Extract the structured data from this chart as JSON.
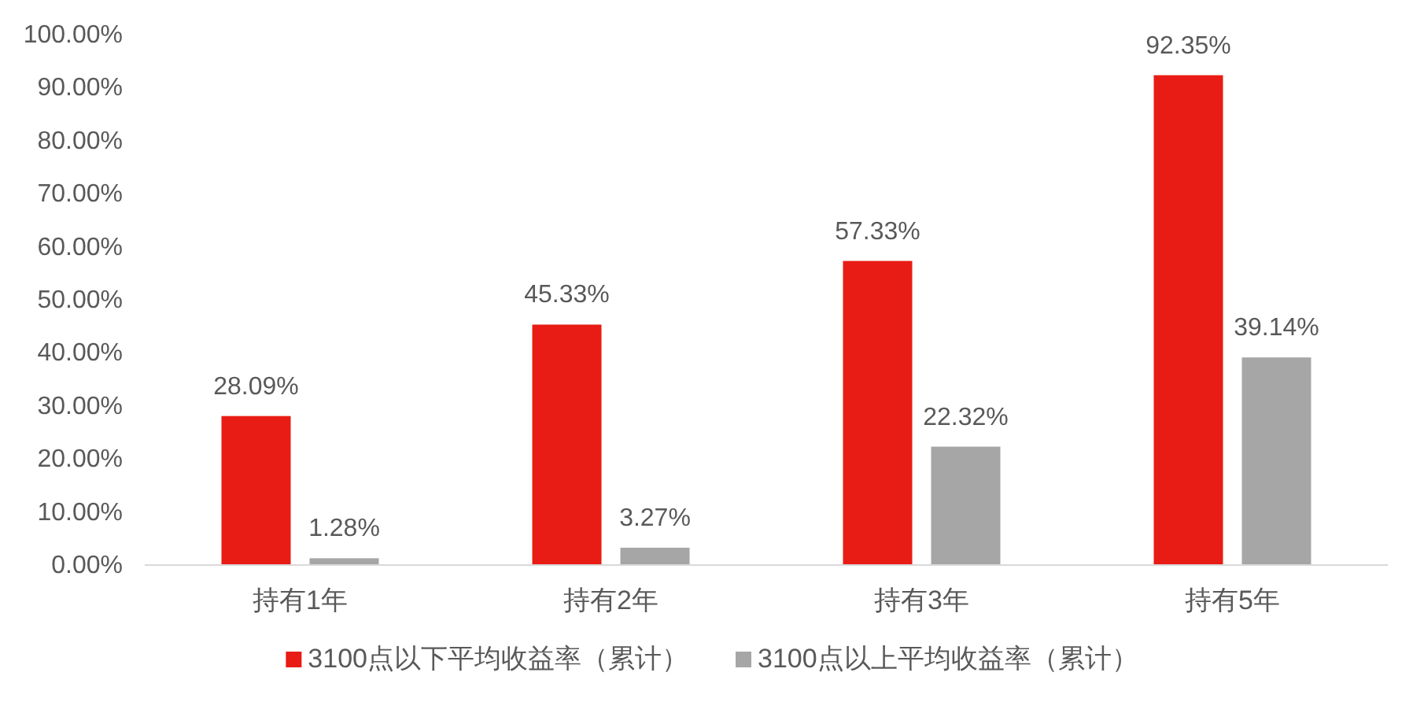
{
  "chart_data": {
    "type": "bar",
    "categories": [
      "持有1年",
      "持有2年",
      "持有3年",
      "持有5年"
    ],
    "series": [
      {
        "name": "3100点以下平均收益率（累计）",
        "color": "#e81c14",
        "values": [
          28.09,
          45.33,
          57.33,
          92.35
        ],
        "value_labels": [
          "28.09%",
          "45.33%",
          "57.33%",
          "92.35%"
        ]
      },
      {
        "name": "3100点以上平均收益率（累计）",
        "color": "#a6a6a6",
        "values": [
          1.28,
          3.27,
          22.32,
          39.14
        ],
        "value_labels": [
          "1.28%",
          "3.27%",
          "22.32%",
          "39.14%"
        ]
      }
    ],
    "ylim": [
      0,
      100
    ],
    "yticks": [
      {
        "value": 0,
        "label": "0.00%"
      },
      {
        "value": 10,
        "label": "10.00%"
      },
      {
        "value": 20,
        "label": "20.00%"
      },
      {
        "value": 30,
        "label": "30.00%"
      },
      {
        "value": 40,
        "label": "40.00%"
      },
      {
        "value": 50,
        "label": "50.00%"
      },
      {
        "value": 60,
        "label": "60.00%"
      },
      {
        "value": 70,
        "label": "70.00%"
      },
      {
        "value": 80,
        "label": "80.00%"
      },
      {
        "value": 90,
        "label": "90.00%"
      },
      {
        "value": 100,
        "label": "100.00%"
      }
    ],
    "legend": "bottom"
  }
}
